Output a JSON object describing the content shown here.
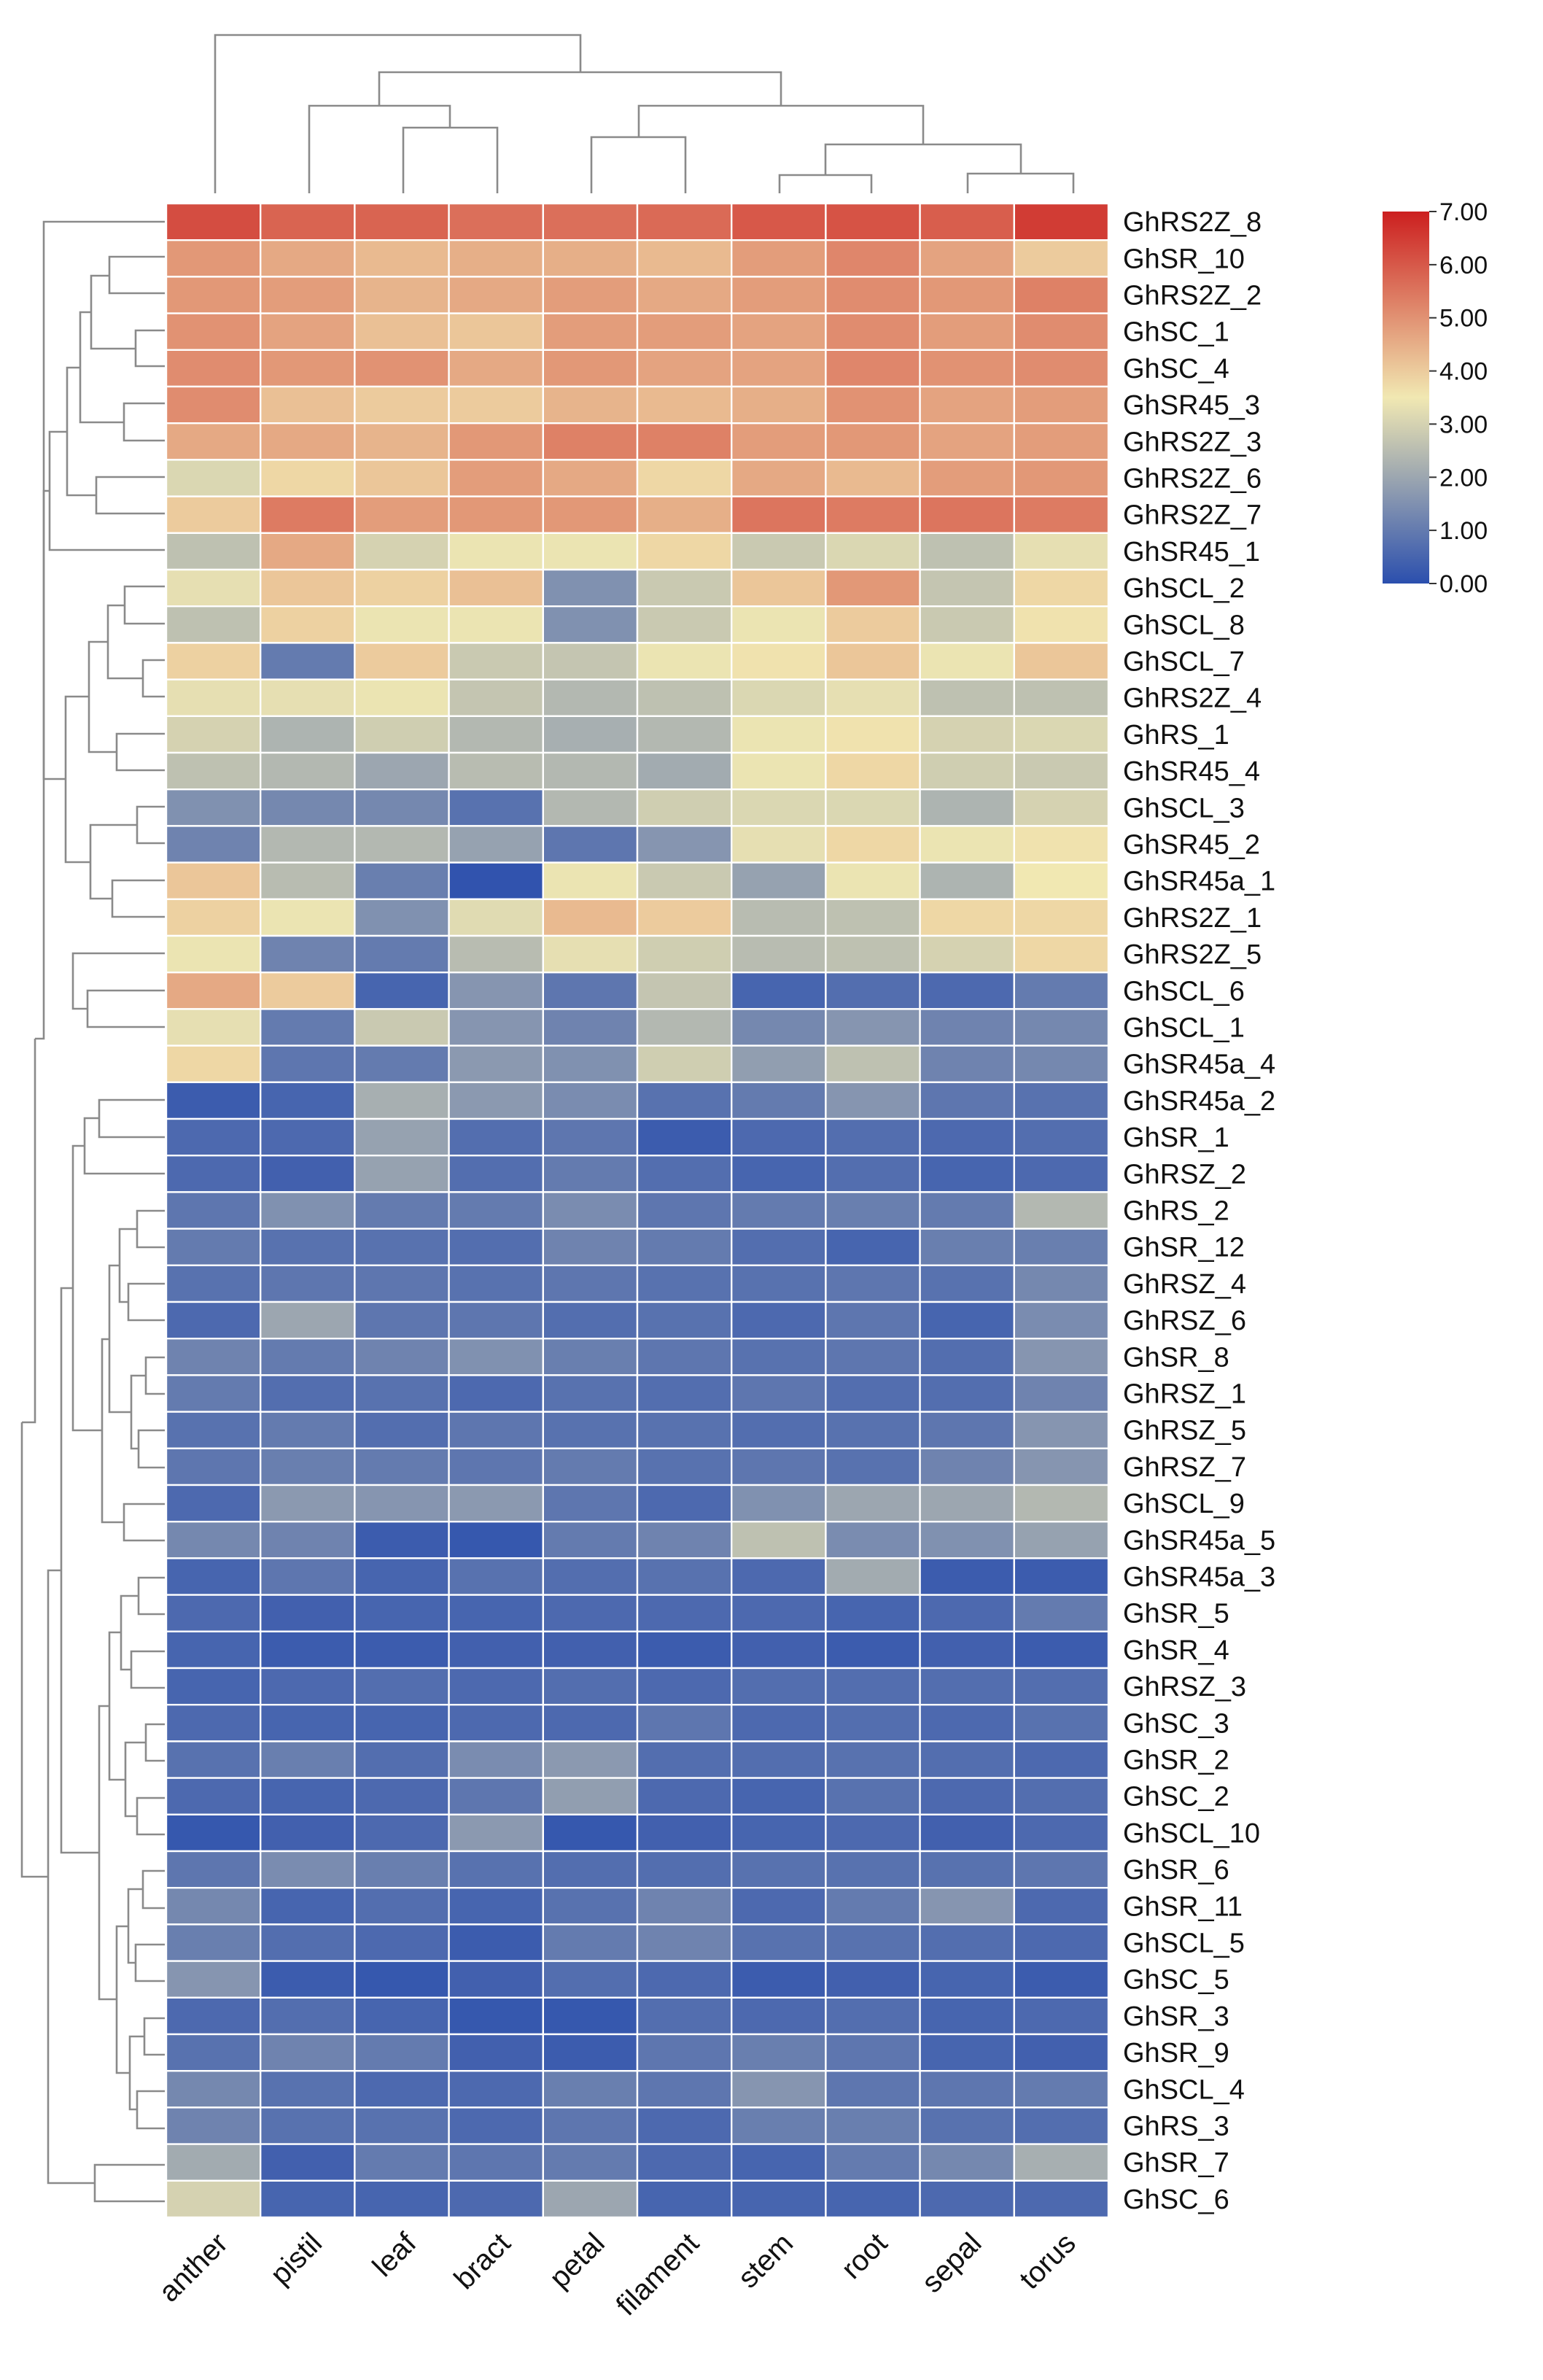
{
  "chart_data": {
    "type": "heatmap",
    "title": "",
    "xlabel": "",
    "ylabel": "",
    "columns": [
      "anther",
      "pistil",
      "leaf",
      "bract",
      "petal",
      "filament",
      "stem",
      "root",
      "sepal",
      "torus"
    ],
    "rows": [
      "GhRS2Z_8",
      "GhSR_10",
      "GhRS2Z_2",
      "GhSC_1",
      "GhSC_4",
      "GhSR45_3",
      "GhRS2Z_3",
      "GhRS2Z_6",
      "GhRS2Z_7",
      "GhSR45_1",
      "GhSCL_2",
      "GhSCL_8",
      "GhSCL_7",
      "GhRS2Z_4",
      "GhRS_1",
      "GhSR45_4",
      "GhSCL_3",
      "GhSR45_2",
      "GhSR45a_1",
      "GhRS2Z_1",
      "GhRS2Z_5",
      "GhSCL_6",
      "GhSCL_1",
      "GhSR45a_4",
      "GhSR45a_2",
      "GhSR_1",
      "GhRSZ_2",
      "GhRS_2",
      "GhSR_12",
      "GhRSZ_4",
      "GhRSZ_6",
      "GhSR_8",
      "GhRSZ_1",
      "GhRSZ_5",
      "GhRSZ_7",
      "GhSCL_9",
      "GhSR45a_5",
      "GhSR45a_3",
      "GhSR_5",
      "GhSR_4",
      "GhRSZ_3",
      "GhSC_3",
      "GhSR_2",
      "GhSC_2",
      "GhSCL_10",
      "GhSR_6",
      "GhSR_11",
      "GhSCL_5",
      "GhSC_5",
      "GhSR_3",
      "GhSR_9",
      "GhSCL_4",
      "GhRS_3",
      "GhSR_7",
      "GhSC_6"
    ],
    "values": [
      [
        6.2,
        5.8,
        5.8,
        5.6,
        5.6,
        5.7,
        6.0,
        6.1,
        5.9,
        6.5
      ],
      [
        4.9,
        4.6,
        4.3,
        4.5,
        4.5,
        4.3,
        4.8,
        5.2,
        4.7,
        4.0
      ],
      [
        4.9,
        4.8,
        4.4,
        4.6,
        4.8,
        4.6,
        4.8,
        5.1,
        4.9,
        5.3
      ],
      [
        5.0,
        4.7,
        4.2,
        4.1,
        4.8,
        4.8,
        4.7,
        5.1,
        4.8,
        5.1
      ],
      [
        5.1,
        4.9,
        5.0,
        4.6,
        4.9,
        4.7,
        4.7,
        5.2,
        5.0,
        5.1
      ],
      [
        5.1,
        4.2,
        4.0,
        4.0,
        4.4,
        4.3,
        4.5,
        5.0,
        4.7,
        4.8
      ],
      [
        4.6,
        4.6,
        4.4,
        4.9,
        5.3,
        5.3,
        4.8,
        4.9,
        4.7,
        4.8
      ],
      [
        3.1,
        3.8,
        4.1,
        4.8,
        4.6,
        3.8,
        4.6,
        4.3,
        4.8,
        4.9
      ],
      [
        4.0,
        5.4,
        4.8,
        4.9,
        4.9,
        4.5,
        5.5,
        5.4,
        5.5,
        5.4
      ],
      [
        2.6,
        4.6,
        3.0,
        3.4,
        3.4,
        3.8,
        2.8,
        3.1,
        2.6,
        3.3
      ],
      [
        3.3,
        4.1,
        3.9,
        4.2,
        1.5,
        2.8,
        4.1,
        4.9,
        2.7,
        3.8
      ],
      [
        2.6,
        3.9,
        3.4,
        3.4,
        1.5,
        2.8,
        3.4,
        4.0,
        2.8,
        3.6
      ],
      [
        3.9,
        1.0,
        4.0,
        2.8,
        2.7,
        3.4,
        3.6,
        4.1,
        3.4,
        4.1
      ],
      [
        3.3,
        3.3,
        3.4,
        2.7,
        2.4,
        2.6,
        3.1,
        3.3,
        2.6,
        2.6
      ],
      [
        3.0,
        2.3,
        2.9,
        2.4,
        2.2,
        2.4,
        3.4,
        3.6,
        3.0,
        3.1
      ],
      [
        2.6,
        2.4,
        2.0,
        2.5,
        2.4,
        2.1,
        3.4,
        3.8,
        2.9,
        2.8
      ],
      [
        1.5,
        1.3,
        1.3,
        0.8,
        2.4,
        2.9,
        3.1,
        3.1,
        2.3,
        3.0
      ],
      [
        1.2,
        2.4,
        2.4,
        1.9,
        0.9,
        1.6,
        3.3,
        3.8,
        3.4,
        3.6
      ],
      [
        4.1,
        2.5,
        1.1,
        0.1,
        3.4,
        2.8,
        1.9,
        3.4,
        2.3,
        3.5
      ],
      [
        3.9,
        3.4,
        1.5,
        3.2,
        4.3,
        4.0,
        2.5,
        2.6,
        3.8,
        3.8
      ],
      [
        3.4,
        1.2,
        1.0,
        2.5,
        3.3,
        2.9,
        2.5,
        2.6,
        3.0,
        3.8
      ],
      [
        4.6,
        4.0,
        0.5,
        1.6,
        0.9,
        2.7,
        0.5,
        0.7,
        0.6,
        1.0
      ],
      [
        3.3,
        1.0,
        2.8,
        1.6,
        1.2,
        2.4,
        1.3,
        1.6,
        1.2,
        1.3
      ],
      [
        3.8,
        0.9,
        1.0,
        1.7,
        1.5,
        2.9,
        1.8,
        2.6,
        1.2,
        1.3
      ],
      [
        0.3,
        0.5,
        2.2,
        1.7,
        1.4,
        0.8,
        1.0,
        1.6,
        0.9,
        0.8
      ],
      [
        0.6,
        0.6,
        1.9,
        0.7,
        0.9,
        0.3,
        0.6,
        0.7,
        0.6,
        0.7
      ],
      [
        0.6,
        0.4,
        1.9,
        0.7,
        1.0,
        0.7,
        0.5,
        0.7,
        0.5,
        0.6
      ],
      [
        0.9,
        1.5,
        1.0,
        1.0,
        1.4,
        0.9,
        1.0,
        1.1,
        1.0,
        2.4
      ],
      [
        1.0,
        0.8,
        0.8,
        0.7,
        1.2,
        1.0,
        0.7,
        0.5,
        1.1,
        1.1
      ],
      [
        0.8,
        0.9,
        0.9,
        0.8,
        0.9,
        0.8,
        0.8,
        0.9,
        0.8,
        1.3
      ],
      [
        0.6,
        2.0,
        0.9,
        0.9,
        0.7,
        0.8,
        0.6,
        0.9,
        0.5,
        1.4
      ],
      [
        1.2,
        1.0,
        1.2,
        1.5,
        1.1,
        0.9,
        0.8,
        0.9,
        0.7,
        1.6
      ],
      [
        1.0,
        0.7,
        0.8,
        0.6,
        0.8,
        0.7,
        0.9,
        0.7,
        0.7,
        1.2
      ],
      [
        0.8,
        1.0,
        0.7,
        0.9,
        0.8,
        0.8,
        0.7,
        0.8,
        0.9,
        1.6
      ],
      [
        0.9,
        1.1,
        1.0,
        0.9,
        1.0,
        0.8,
        0.9,
        0.8,
        1.2,
        1.6
      ],
      [
        0.6,
        1.7,
        1.6,
        1.7,
        0.9,
        0.6,
        1.5,
        2.0,
        2.0,
        2.4
      ],
      [
        1.3,
        1.2,
        0.3,
        0.2,
        1.0,
        1.2,
        2.6,
        1.4,
        1.5,
        1.9
      ],
      [
        0.5,
        0.9,
        0.5,
        0.8,
        0.7,
        0.8,
        0.6,
        2.1,
        0.3,
        0.3
      ],
      [
        0.6,
        0.4,
        0.5,
        0.5,
        0.6,
        0.6,
        0.6,
        0.5,
        0.6,
        1.0
      ],
      [
        0.5,
        0.3,
        0.3,
        0.4,
        0.4,
        0.3,
        0.4,
        0.3,
        0.4,
        0.3
      ],
      [
        0.5,
        0.6,
        0.7,
        0.6,
        0.7,
        0.6,
        0.7,
        0.7,
        0.7,
        0.7
      ],
      [
        0.6,
        0.5,
        0.5,
        0.6,
        0.6,
        0.9,
        0.6,
        0.7,
        0.6,
        0.8
      ],
      [
        0.8,
        1.1,
        0.7,
        1.4,
        1.7,
        0.7,
        0.7,
        0.8,
        0.7,
        0.6
      ],
      [
        0.6,
        0.5,
        0.6,
        0.9,
        1.8,
        0.6,
        0.5,
        0.8,
        0.6,
        0.7
      ],
      [
        0.2,
        0.4,
        0.6,
        1.7,
        0.2,
        0.4,
        0.5,
        0.6,
        0.4,
        0.6
      ],
      [
        0.9,
        1.4,
        1.1,
        0.8,
        0.7,
        0.7,
        0.8,
        0.8,
        0.8,
        0.9
      ],
      [
        1.3,
        0.5,
        0.7,
        0.5,
        0.8,
        1.2,
        0.6,
        1.0,
        1.6,
        0.6
      ],
      [
        1.1,
        0.7,
        0.6,
        0.3,
        1.0,
        1.2,
        0.8,
        0.8,
        0.7,
        0.6
      ],
      [
        1.6,
        0.3,
        0.2,
        0.4,
        0.7,
        0.6,
        0.3,
        0.4,
        0.5,
        0.3
      ],
      [
        0.6,
        0.7,
        0.5,
        0.2,
        0.2,
        0.7,
        0.6,
        0.7,
        0.5,
        0.6
      ],
      [
        0.8,
        1.2,
        1.0,
        0.4,
        0.3,
        0.9,
        1.1,
        0.9,
        0.5,
        0.4
      ],
      [
        1.3,
        0.8,
        0.6,
        0.6,
        1.1,
        0.9,
        1.6,
        0.9,
        0.9,
        1.0
      ],
      [
        1.2,
        0.8,
        0.8,
        0.6,
        0.9,
        0.6,
        1.1,
        1.1,
        0.8,
        0.7
      ],
      [
        2.1,
        0.4,
        1.0,
        0.9,
        1.0,
        0.6,
        0.5,
        1.0,
        1.3,
        2.2
      ],
      [
        3.0,
        0.5,
        0.5,
        0.6,
        2.0,
        0.5,
        0.5,
        0.5,
        0.6,
        0.6
      ]
    ],
    "color_scale": {
      "min": 0.0,
      "max": 7.0,
      "ticks": [
        "7.00",
        "6.00",
        "5.00",
        "4.00",
        "3.00",
        "2.00",
        "1.00",
        "0.00"
      ],
      "colors": [
        "#2b4fae",
        "#f1e8b2",
        "#cc1f1f"
      ]
    },
    "legend_position": "top-right",
    "column_dendrogram": true,
    "row_dendrogram": true
  }
}
